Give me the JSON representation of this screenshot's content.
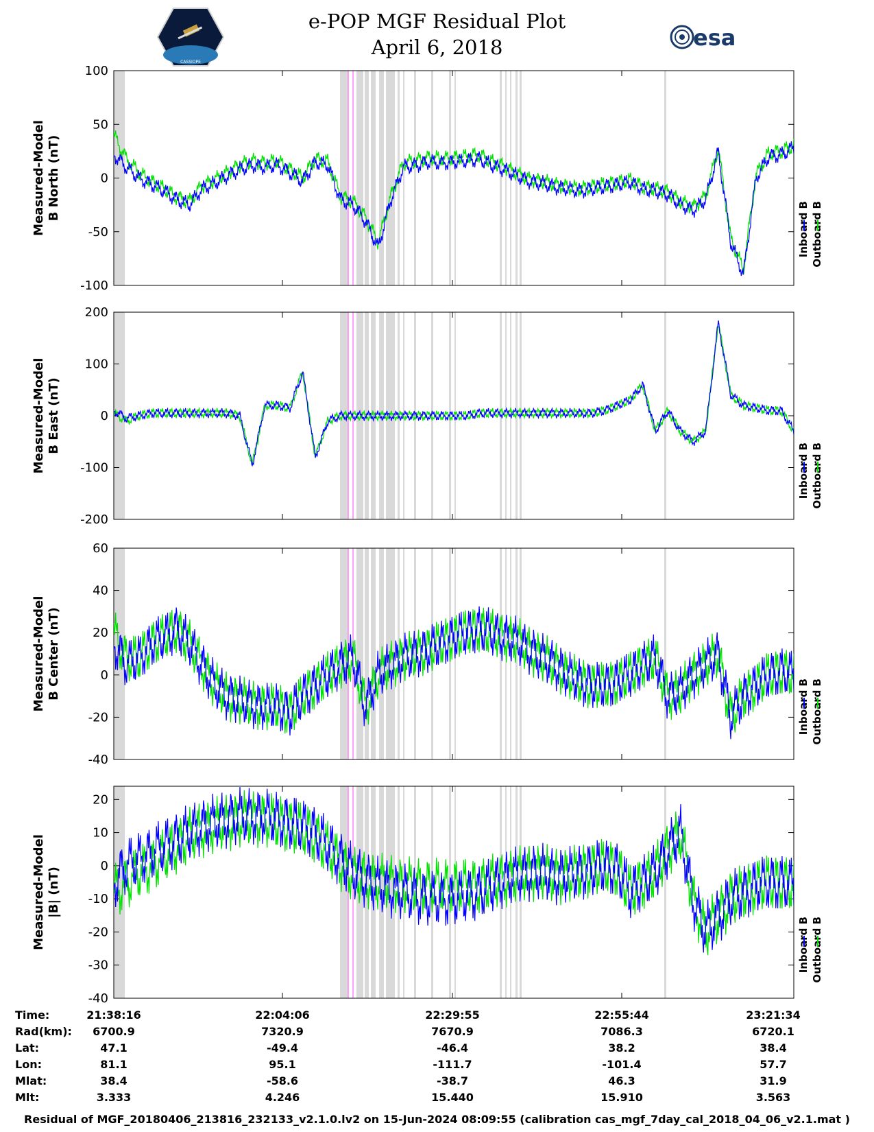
{
  "header": {
    "title_line1": "e-POP MGF Residual Plot",
    "title_line2": "April 6, 2018",
    "esa_logo_text": "esa",
    "cassiope_logo_text": "CASSIOPE"
  },
  "colors": {
    "inboard": "#0000ff",
    "outboard": "#00e000",
    "gap": "#d9d9d9",
    "marker": "#ff80ff"
  },
  "chart_data": [
    {
      "type": "line",
      "ylabel_line1": "Measured-Model",
      "ylabel_line2": "B North (nT)",
      "ylim": [
        -100,
        100
      ],
      "yticks": [
        -100,
        -50,
        0,
        50,
        100
      ],
      "series": [
        {
          "name": "Inboard B",
          "values": [
            22,
            10,
            0,
            -6,
            -12,
            -20,
            -25,
            -10,
            -5,
            2,
            8,
            12,
            10,
            12,
            5,
            -3,
            15,
            12,
            -20,
            -25,
            -40,
            -65,
            -20,
            10,
            12,
            15,
            14,
            15,
            16,
            18,
            12,
            8,
            2,
            -3,
            -5,
            -8,
            -10,
            -12,
            -10,
            -8,
            -6,
            -4,
            -10,
            -12,
            -15,
            -25,
            -30,
            -20,
            25,
            -60,
            -90,
            0,
            20,
            22,
            28
          ]
        },
        {
          "name": "Outboard B",
          "values": [
            40,
            18,
            5,
            -3,
            -10,
            -18,
            -22,
            -7,
            -2,
            5,
            12,
            16,
            14,
            16,
            8,
            0,
            18,
            15,
            -17,
            -22,
            -37,
            -60,
            -17,
            14,
            16,
            19,
            18,
            19,
            20,
            22,
            15,
            11,
            4,
            -1,
            -3,
            -6,
            -8,
            -10,
            -8,
            -6,
            -4,
            -2,
            -8,
            -10,
            -13,
            -22,
            -27,
            -17,
            28,
            -57,
            -85,
            3,
            23,
            25,
            30
          ]
        }
      ]
    },
    {
      "type": "line",
      "ylabel_line1": "Measured-Model",
      "ylabel_line2": "B East (nT)",
      "ylim": [
        -200,
        200
      ],
      "yticks": [
        -200,
        -100,
        0,
        100,
        200
      ],
      "series": [
        {
          "name": "Inboard B",
          "values": [
            10,
            -5,
            0,
            5,
            5,
            5,
            5,
            5,
            5,
            5,
            0,
            -95,
            20,
            20,
            15,
            85,
            -80,
            -10,
            0,
            0,
            0,
            0,
            0,
            0,
            0,
            0,
            0,
            0,
            0,
            5,
            5,
            5,
            5,
            5,
            5,
            5,
            5,
            5,
            5,
            10,
            20,
            30,
            60,
            -30,
            10,
            -30,
            -50,
            -30,
            180,
            40,
            20,
            15,
            10,
            10,
            -30
          ]
        },
        {
          "name": "Outboard B",
          "values": [
            5,
            -10,
            0,
            5,
            5,
            5,
            5,
            5,
            5,
            5,
            0,
            -95,
            20,
            20,
            15,
            85,
            -80,
            -10,
            0,
            0,
            0,
            0,
            0,
            0,
            0,
            0,
            0,
            0,
            0,
            5,
            5,
            5,
            5,
            5,
            5,
            5,
            5,
            5,
            5,
            10,
            20,
            30,
            60,
            -30,
            10,
            -30,
            -50,
            -30,
            180,
            40,
            20,
            15,
            10,
            10,
            -30
          ]
        }
      ]
    },
    {
      "type": "line",
      "ylabel_line1": "Measured-Model",
      "ylabel_line2": "B Center (nT)",
      "ylim": [
        -40,
        60
      ],
      "yticks": [
        -40,
        -20,
        0,
        20,
        40,
        60
      ],
      "series": [
        {
          "name": "Inboard B",
          "values": [
            15,
            5,
            8,
            15,
            18,
            22,
            15,
            5,
            -5,
            -10,
            -12,
            -14,
            -15,
            -15,
            -18,
            -10,
            -5,
            0,
            5,
            8,
            -15,
            0,
            5,
            8,
            10,
            12,
            15,
            18,
            20,
            22,
            20,
            18,
            16,
            12,
            8,
            5,
            0,
            -3,
            -5,
            -5,
            -3,
            0,
            5,
            8,
            -10,
            -8,
            0,
            5,
            10,
            -20,
            -10,
            -5,
            0,
            2,
            0
          ]
        },
        {
          "name": "Outboard B",
          "values": [
            20,
            8,
            8,
            15,
            18,
            22,
            15,
            5,
            -5,
            -10,
            -12,
            -14,
            -15,
            -15,
            -18,
            -10,
            -5,
            0,
            5,
            8,
            -15,
            0,
            5,
            8,
            10,
            12,
            15,
            18,
            20,
            22,
            20,
            18,
            16,
            12,
            8,
            5,
            0,
            -3,
            -5,
            -5,
            -3,
            0,
            5,
            8,
            -10,
            -8,
            0,
            5,
            10,
            -20,
            -10,
            -5,
            0,
            2,
            0
          ]
        }
      ]
    },
    {
      "type": "line",
      "ylabel_line1": "Measured-Model",
      "ylabel_line2": "|B| (nT)",
      "ylim": [
        -40,
        24
      ],
      "yticks": [
        -40,
        -30,
        -20,
        -10,
        0,
        10,
        20
      ],
      "series": [
        {
          "name": "Inboard B",
          "values": [
            -5,
            0,
            2,
            4,
            6,
            8,
            10,
            12,
            13,
            14,
            15,
            15,
            15,
            14,
            13,
            12,
            10,
            6,
            2,
            -2,
            -4,
            -6,
            -7,
            -8,
            -9,
            -10,
            -10,
            -10,
            -9,
            -8,
            -6,
            -4,
            -3,
            -2,
            -2,
            -3,
            -3,
            -2,
            -1,
            0,
            -1,
            -8,
            -5,
            -2,
            5,
            10,
            -10,
            -20,
            -15,
            -10,
            -8,
            -6,
            -5,
            -5,
            -6
          ]
        },
        {
          "name": "Outboard B",
          "values": [
            -8,
            -5,
            -2,
            0,
            3,
            6,
            9,
            11,
            12,
            13,
            14,
            14,
            14,
            13,
            12,
            11,
            9,
            5,
            1,
            -3,
            -4,
            -5,
            -5,
            -6,
            -6,
            -6,
            -6,
            -6,
            -6,
            -6,
            -5,
            -4,
            -3,
            -2,
            -2,
            -3,
            -3,
            -2,
            -1,
            0,
            -1,
            -8,
            -5,
            -2,
            5,
            10,
            -10,
            -20,
            -15,
            -10,
            -8,
            -6,
            -5,
            -5,
            -6
          ]
        }
      ]
    }
  ],
  "legend": {
    "inboard_label": "Inboard B",
    "outboard_label": "Outboard B"
  },
  "table": {
    "labels": [
      "Time:",
      "Rad(km):",
      "Lat:",
      "Lon:",
      "Mlat:",
      "Mlt:"
    ],
    "columns": [
      [
        "21:38:16",
        "6700.9",
        "47.1",
        "81.1",
        "38.4",
        "3.333"
      ],
      [
        "22:04:06",
        "7320.9",
        "-49.4",
        "95.1",
        "-58.6",
        "4.246"
      ],
      [
        "22:29:55",
        "7670.9",
        "-46.4",
        "-111.7",
        "-38.7",
        "15.440"
      ],
      [
        "22:55:44",
        "7086.3",
        "38.2",
        "-101.4",
        "46.3",
        "15.910"
      ],
      [
        "23:21:34",
        "6720.1",
        "38.4",
        "57.7",
        "31.9",
        "3.563"
      ]
    ]
  },
  "footer": "Residual of MGF_20180406_213816_232133_v2.1.0.lv2 on 15-Jun-2024 08:09:55 (calibration cas_mgf_7day_cal_2018_04_06_v2.1.mat )"
}
